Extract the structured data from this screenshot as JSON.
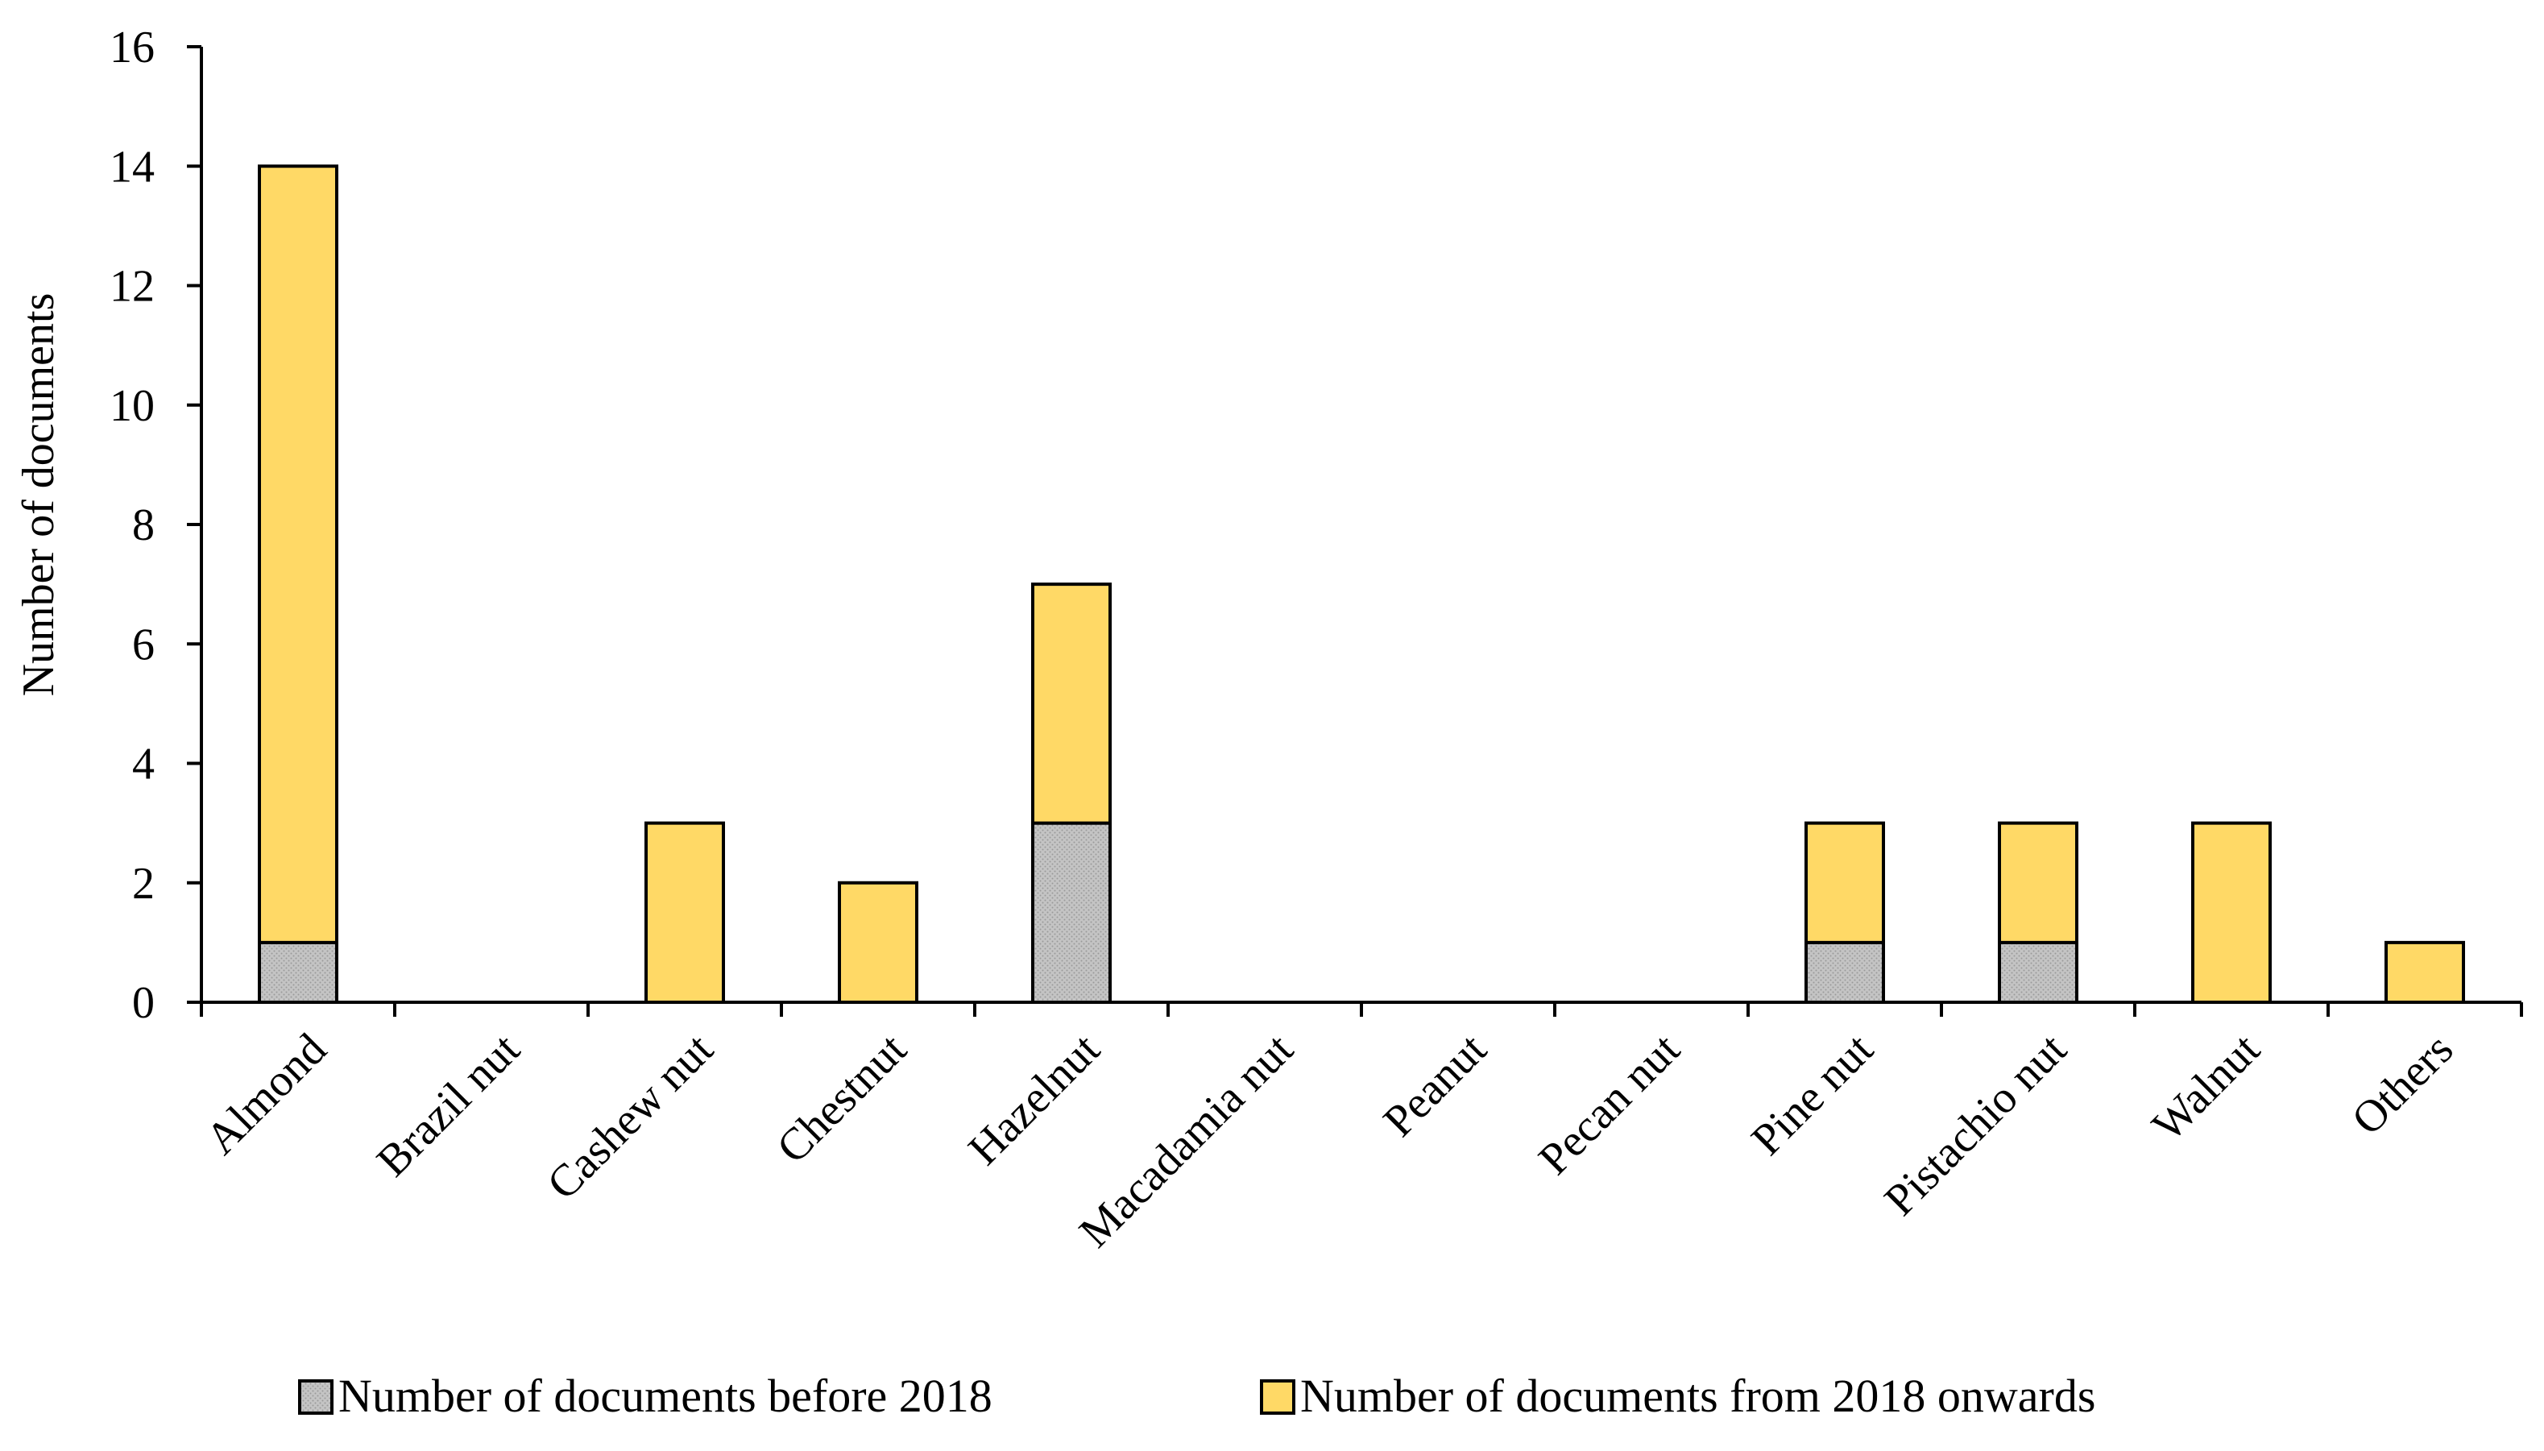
{
  "chart_data": {
    "type": "bar",
    "stacked": true,
    "title": "",
    "xlabel": "",
    "ylabel": "Number of documents",
    "ylim": [
      0,
      16
    ],
    "yticks": [
      0,
      2,
      4,
      6,
      8,
      10,
      12,
      14,
      16
    ],
    "grid": false,
    "legend_position": "bottom",
    "categories": [
      "Almond",
      "Brazil nut",
      "Cashew nut",
      "Chestnut",
      "Hazelnut",
      "Macadamia nut",
      "Peanut",
      "Pecan nut",
      "Pine nut",
      "Pistachio nut",
      "Walnut",
      "Others"
    ],
    "series": [
      {
        "name": "Number of documents before 2018",
        "color": "#C0C0C0",
        "values": [
          1,
          0,
          0,
          0,
          3,
          0,
          0,
          0,
          1,
          1,
          0,
          0
        ]
      },
      {
        "name": "Number of documents from 2018 onwards",
        "color": "#FFD966",
        "values": [
          13,
          0,
          3,
          2,
          4,
          0,
          0,
          0,
          2,
          2,
          3,
          1
        ]
      }
    ]
  }
}
